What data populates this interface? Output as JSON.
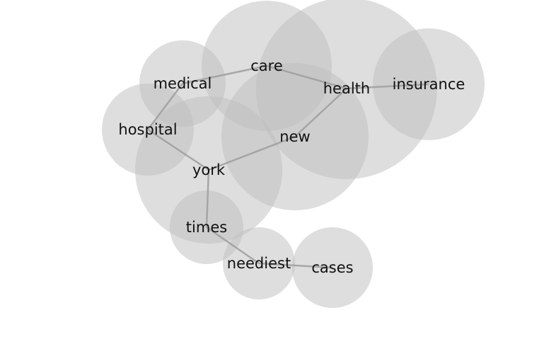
{
  "nodes": [
    {
      "id": "health",
      "label": "health"
    },
    {
      "id": "care",
      "label": "care"
    },
    {
      "id": "new",
      "label": "new"
    },
    {
      "id": "york",
      "label": "york"
    },
    {
      "id": "insurance",
      "label": "insurance"
    },
    {
      "id": "medical",
      "label": "medical"
    },
    {
      "id": "hospital",
      "label": "hospital"
    },
    {
      "id": "times",
      "label": "times"
    },
    {
      "id": "neediest",
      "label": "neediest"
    },
    {
      "id": "cases",
      "label": "cases"
    }
  ],
  "edges": [
    [
      "health",
      "insurance"
    ],
    [
      "health",
      "care"
    ],
    [
      "health",
      "new"
    ],
    [
      "care",
      "medical"
    ],
    [
      "medical",
      "hospital"
    ],
    [
      "hospital",
      "york"
    ],
    [
      "new",
      "york"
    ],
    [
      "york",
      "times"
    ],
    [
      "times",
      "neediest"
    ],
    [
      "neediest",
      "cases"
    ]
  ]
}
